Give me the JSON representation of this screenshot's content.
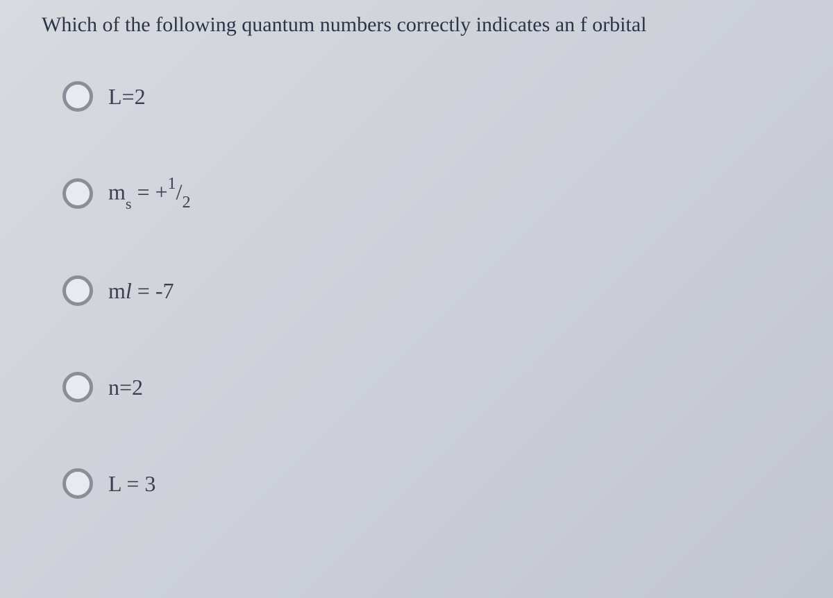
{
  "question": {
    "text": "Which of the following quantum numbers correctly indicates an f orbital"
  },
  "options": [
    {
      "id": "opt1",
      "parts": {
        "var": "L",
        "eq": "=",
        "val": "2"
      }
    },
    {
      "id": "opt2",
      "parts": {
        "var": "m",
        "sub": "s",
        "eq": " = +",
        "numtop": "1",
        "slash": "/",
        "numbot": "2"
      }
    },
    {
      "id": "opt3",
      "parts": {
        "var": "m",
        "ital": "l",
        "eq": " = ",
        "val": "-7"
      }
    },
    {
      "id": "opt4",
      "parts": {
        "var": "n",
        "eq": "=",
        "val": "2"
      }
    },
    {
      "id": "opt5",
      "parts": {
        "var": "L",
        "eq": " = ",
        "val": "3"
      }
    }
  ],
  "styling": {
    "background_gradient_start": "#d8dae0",
    "background_gradient_end": "#c2c6d0",
    "question_color": "#2a3548",
    "question_fontsize": 30,
    "option_color": "#3a4050",
    "option_fontsize": 32,
    "radio_border_color": "#8a8e98",
    "radio_fill_color": "#e8eaef",
    "radio_size": 44,
    "font_family": "Times New Roman"
  }
}
